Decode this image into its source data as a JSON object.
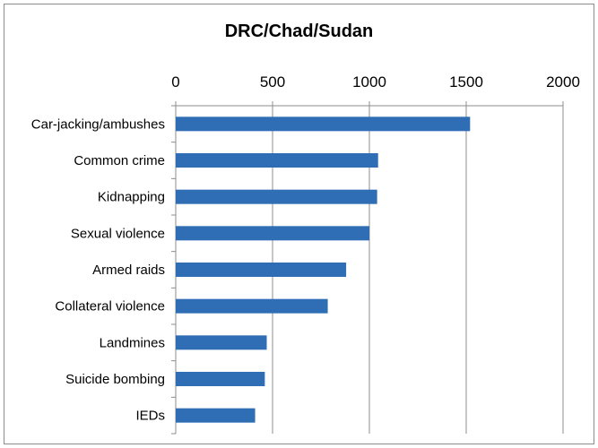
{
  "chart_data": {
    "type": "bar",
    "orientation": "horizontal",
    "title": "DRC/Chad/Sudan",
    "xlabel": "",
    "ylabel": "",
    "xlim": [
      0,
      2000
    ],
    "ticks": [
      0,
      500,
      1000,
      1500,
      2000
    ],
    "tick_labels": [
      "0",
      "500",
      "1000",
      "1500",
      "2000"
    ],
    "axis_position": "top",
    "grid": true,
    "legend": "none",
    "bar_color": "#2f6db5",
    "categories": [
      "Car-jacking/ambushes",
      "Common crime",
      "Kidnapping",
      "Sexual violence",
      "Armed raids",
      "Collateral violence",
      "Landmines",
      "Suicide bombing",
      "IEDs"
    ],
    "values": [
      1520,
      1045,
      1040,
      1000,
      880,
      785,
      470,
      460,
      410
    ]
  }
}
